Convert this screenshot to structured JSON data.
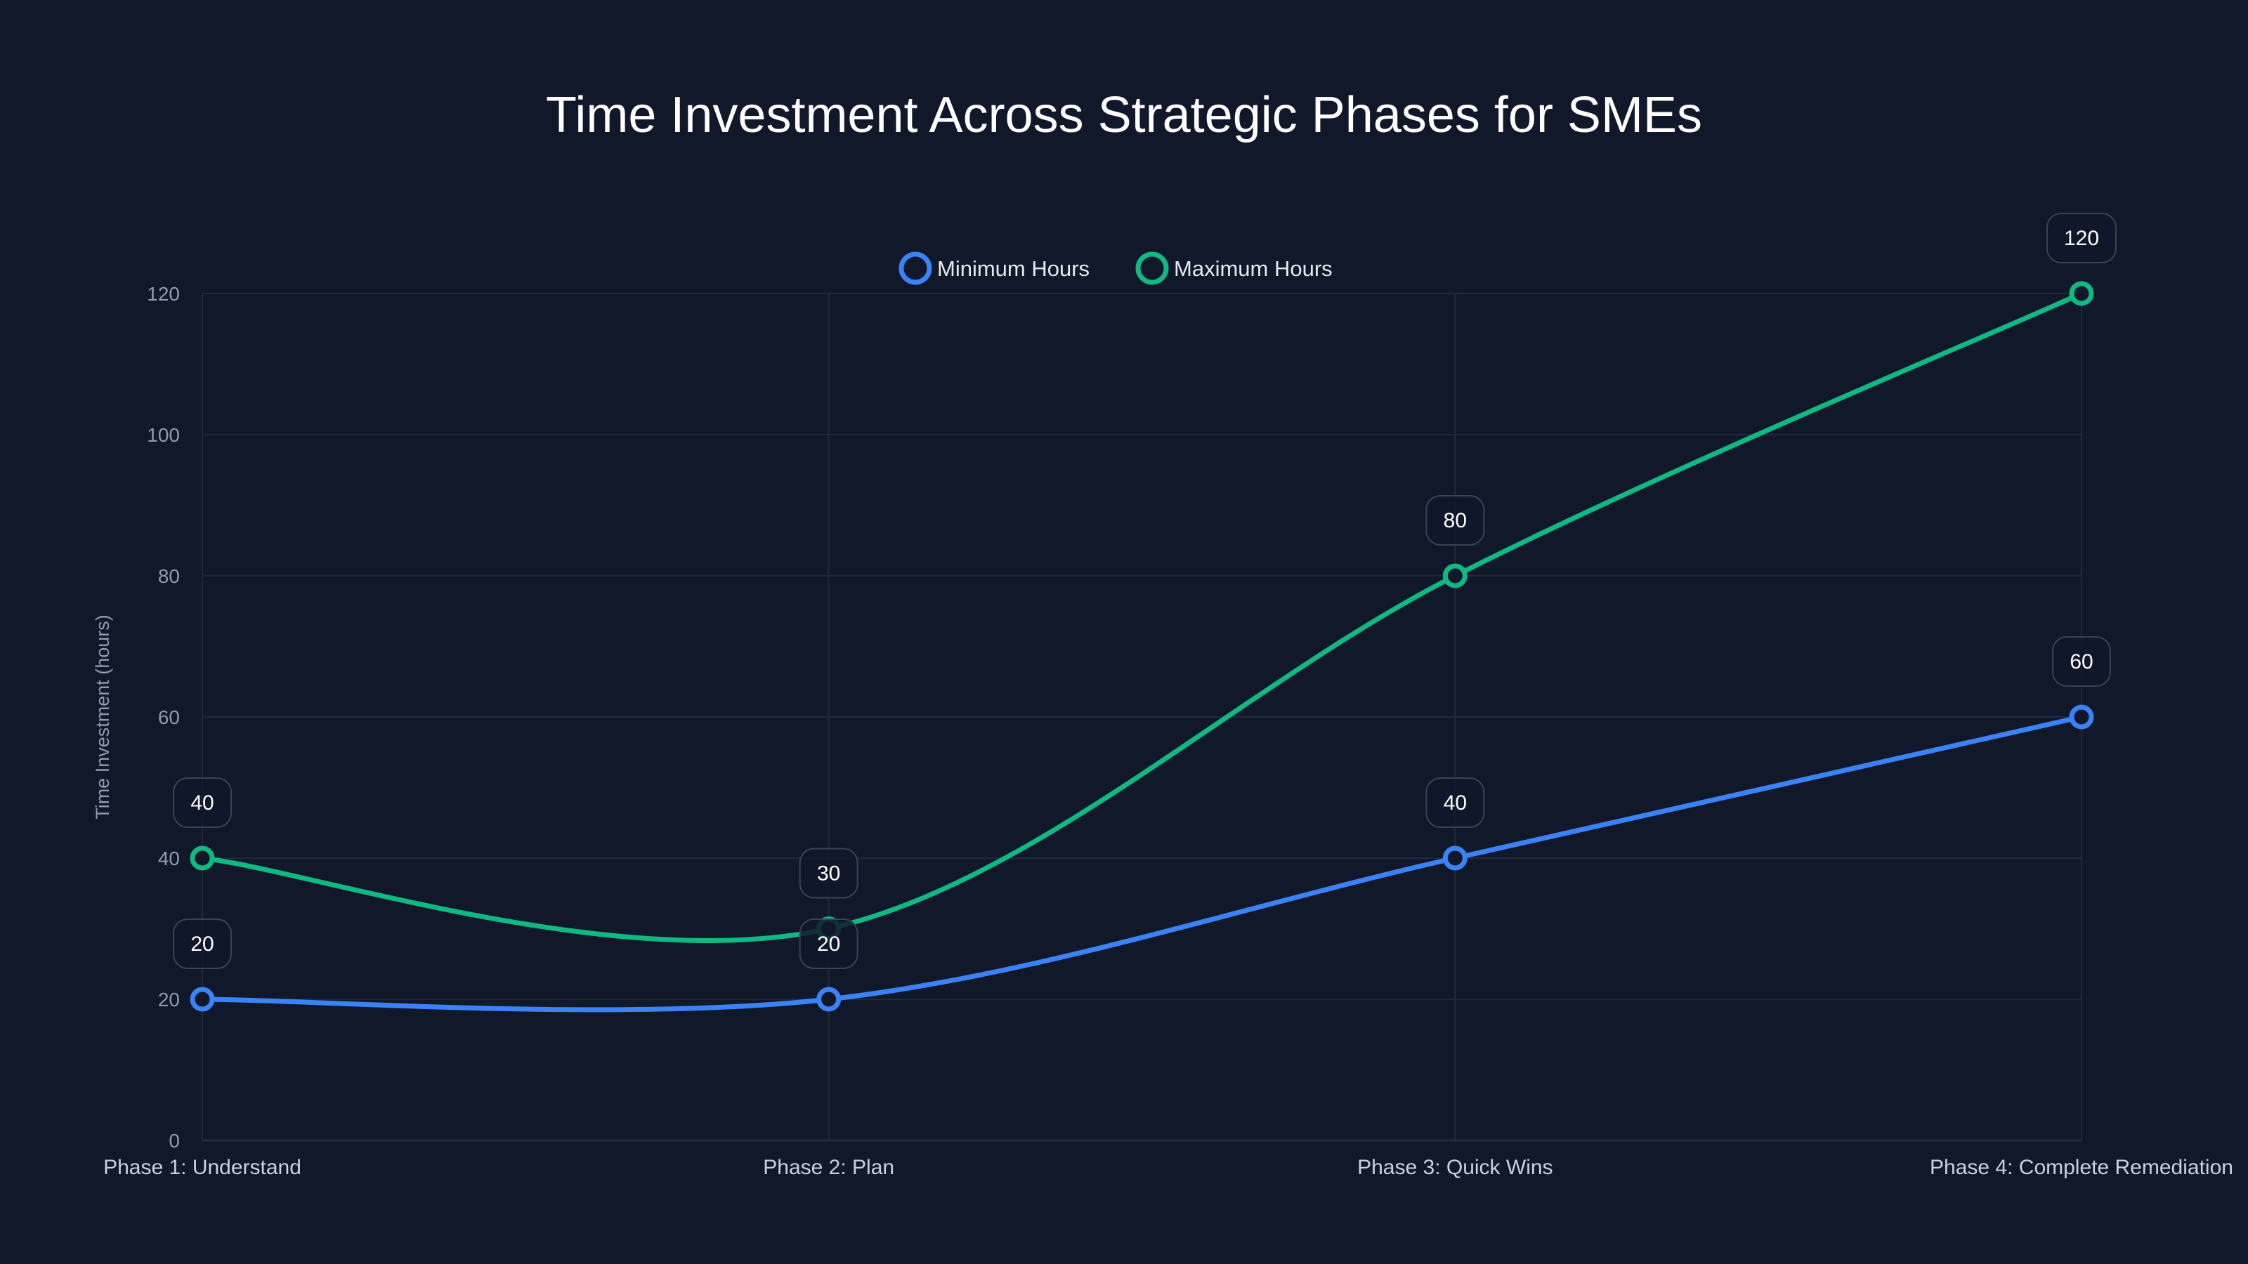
{
  "chart_data": {
    "type": "line",
    "title": "Time Investment Across Strategic Phases for SMEs",
    "xlabel": "",
    "ylabel": "Time Investment (hours)",
    "categories": [
      "Phase 1: Understand",
      "Phase 2: Plan",
      "Phase 3: Quick Wins",
      "Phase 4: Complete Remediation"
    ],
    "series": [
      {
        "name": "Minimum Hours",
        "color": "#3b82f6",
        "values": [
          20,
          20,
          40,
          60
        ]
      },
      {
        "name": "Maximum Hours",
        "color": "#10b981",
        "values": [
          40,
          30,
          80,
          120
        ]
      }
    ],
    "ylim": [
      0,
      120
    ],
    "yticks": [
      0,
      20,
      40,
      60,
      80,
      100,
      120
    ],
    "grid": true,
    "legend_position": "top-center",
    "line_shape": "spline",
    "data_labels": true
  },
  "colors": {
    "background": "#10182a",
    "grid": "#1f2a3d",
    "label_box_border": "#3a4355"
  }
}
